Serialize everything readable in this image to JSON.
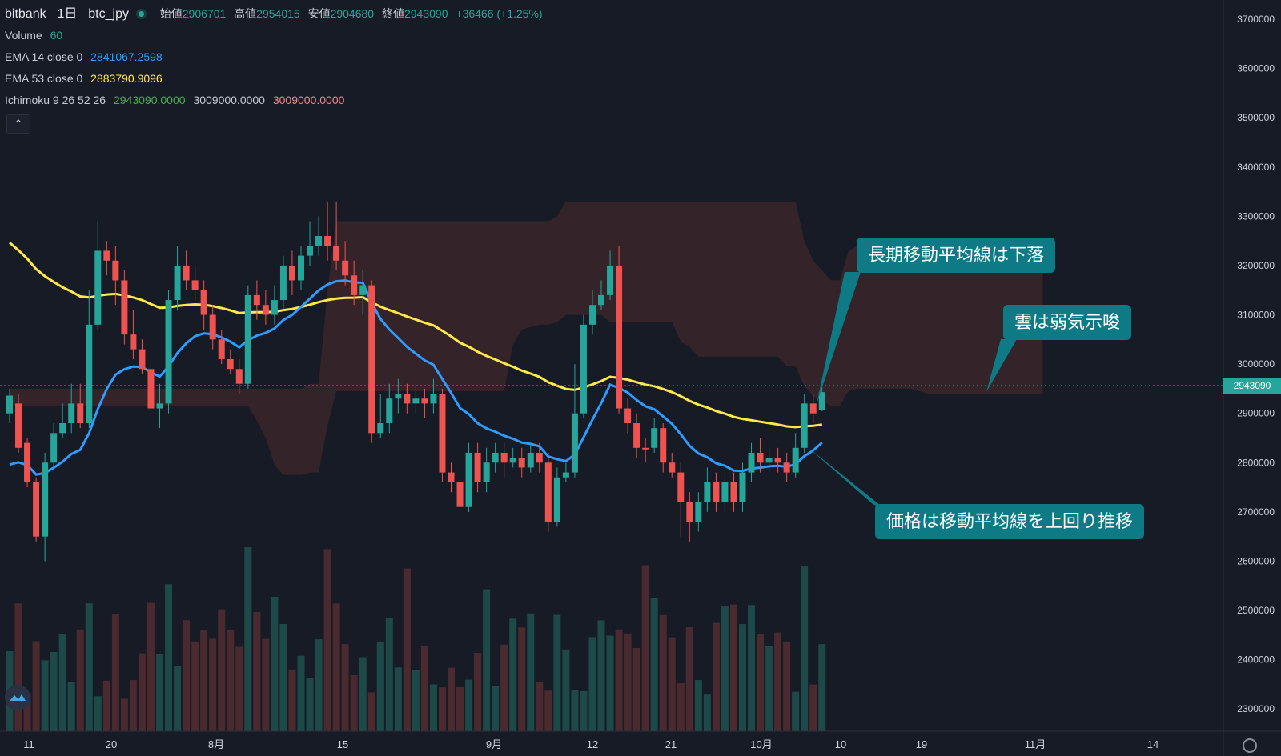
{
  "legend": {
    "exchange": "bitbank",
    "interval": "1日",
    "symbol": "btc_jpy",
    "open_label": "始値",
    "open": "2906701",
    "high_label": "高値",
    "high": "2954015",
    "low_label": "安値",
    "low": "2904680",
    "close_label": "終値",
    "close": "2943090",
    "change": "+36466 (+1.25%)",
    "volume_label": "Volume",
    "volume": "60",
    "ema14_label": "EMA 14 close 0",
    "ema14": "2841067.2598",
    "ema53_label": "EMA 53 close 0",
    "ema53": "2883790.9096",
    "ichimoku_label": "Ichimoku 9 26 52 26",
    "ichimoku_v1": "2943090.0000",
    "ichimoku_v2": "3009000.0000",
    "ichimoku_v3": "3009000.0000",
    "collapse_icon": "chevron-up-icon"
  },
  "price_tag": "2943090",
  "annotations": [
    "長期移動平均線は下落",
    "雲は弱気示唆",
    "価格は移動平均線を上回り推移"
  ],
  "colors": {
    "up": "#26a69a",
    "down": "#ef5350",
    "ema14": "#2e9bff",
    "ema53": "#ffe94a",
    "cloud_bear": "#3a2529",
    "cloud_bull": "#1d2f2b",
    "background": "#161b26"
  },
  "chart_data": {
    "type": "candlestick",
    "y_axis_ticks": [
      2300000,
      2400000,
      2500000,
      2600000,
      2700000,
      2800000,
      2900000,
      3000000,
      3100000,
      3200000,
      3300000,
      3400000,
      3500000,
      3600000,
      3700000
    ],
    "ylim": [
      2200000,
      3740000
    ],
    "x_axis_ticks": [
      "11",
      "20",
      "8月",
      "15",
      "9月",
      "12",
      "21",
      "10月",
      "10",
      "19",
      "11月",
      "14"
    ],
    "candles": [
      [
        2936000,
        2900000,
        2950000,
        2880000,
        "up"
      ],
      [
        2920000,
        2830000,
        2940000,
        2820000,
        "down"
      ],
      [
        2840000,
        2760000,
        2850000,
        2750000,
        "down"
      ],
      [
        2760000,
        2650000,
        2770000,
        2640000,
        "down"
      ],
      [
        2650000,
        2800000,
        2820000,
        2600000,
        "up"
      ],
      [
        2800000,
        2860000,
        2880000,
        2790000,
        "up"
      ],
      [
        2860000,
        2880000,
        2920000,
        2850000,
        "up"
      ],
      [
        2880000,
        2920000,
        2960000,
        2860000,
        "up"
      ],
      [
        2920000,
        2880000,
        2960000,
        2870000,
        "down"
      ],
      [
        2880000,
        3080000,
        3150000,
        2870000,
        "up"
      ],
      [
        3080000,
        3230000,
        3290000,
        3070000,
        "up"
      ],
      [
        3230000,
        3210000,
        3250000,
        3180000,
        "down"
      ],
      [
        3210000,
        3170000,
        3240000,
        3120000,
        "down"
      ],
      [
        3170000,
        3060000,
        3190000,
        3040000,
        "down"
      ],
      [
        3060000,
        3030000,
        3110000,
        3010000,
        "down"
      ],
      [
        3030000,
        2990000,
        3050000,
        2980000,
        "down"
      ],
      [
        2990000,
        2910000,
        3010000,
        2890000,
        "down"
      ],
      [
        2910000,
        2920000,
        2960000,
        2870000,
        "up"
      ],
      [
        2920000,
        3130000,
        3150000,
        2900000,
        "up"
      ],
      [
        3130000,
        3200000,
        3240000,
        3110000,
        "up"
      ],
      [
        3200000,
        3170000,
        3230000,
        3150000,
        "down"
      ],
      [
        3170000,
        3150000,
        3200000,
        3130000,
        "down"
      ],
      [
        3150000,
        3100000,
        3170000,
        3070000,
        "down"
      ],
      [
        3100000,
        3050000,
        3120000,
        3030000,
        "down"
      ],
      [
        3050000,
        3010000,
        3070000,
        3000000,
        "down"
      ],
      [
        3010000,
        2990000,
        3030000,
        2980000,
        "down"
      ],
      [
        2990000,
        2960000,
        3010000,
        2940000,
        "down"
      ],
      [
        2960000,
        3140000,
        3160000,
        2950000,
        "up"
      ],
      [
        3140000,
        3120000,
        3170000,
        3090000,
        "down"
      ],
      [
        3120000,
        3100000,
        3150000,
        3080000,
        "down"
      ],
      [
        3100000,
        3130000,
        3160000,
        3080000,
        "up"
      ],
      [
        3130000,
        3200000,
        3220000,
        3110000,
        "up"
      ],
      [
        3200000,
        3170000,
        3230000,
        3140000,
        "down"
      ],
      [
        3170000,
        3220000,
        3240000,
        3150000,
        "up"
      ],
      [
        3220000,
        3240000,
        3290000,
        3200000,
        "up"
      ],
      [
        3240000,
        3260000,
        3300000,
        3220000,
        "up"
      ],
      [
        3260000,
        3240000,
        3330000,
        3210000,
        "down"
      ],
      [
        3240000,
        3210000,
        3330000,
        3190000,
        "down"
      ],
      [
        3210000,
        3180000,
        3250000,
        3160000,
        "down"
      ],
      [
        3180000,
        3140000,
        3210000,
        3120000,
        "down"
      ],
      [
        3140000,
        3160000,
        3190000,
        3100000,
        "up"
      ],
      [
        3160000,
        2860000,
        3170000,
        2840000,
        "down"
      ],
      [
        2860000,
        2880000,
        2940000,
        2850000,
        "up"
      ],
      [
        2880000,
        2930000,
        2960000,
        2860000,
        "up"
      ],
      [
        2930000,
        2940000,
        2970000,
        2900000,
        "up"
      ],
      [
        2940000,
        2920000,
        2960000,
        2900000,
        "down"
      ],
      [
        2920000,
        2930000,
        2960000,
        2900000,
        "up"
      ],
      [
        2930000,
        2920000,
        2950000,
        2890000,
        "down"
      ],
      [
        2920000,
        2940000,
        2970000,
        2900000,
        "up"
      ],
      [
        2940000,
        2780000,
        2950000,
        2760000,
        "down"
      ],
      [
        2780000,
        2760000,
        2800000,
        2740000,
        "down"
      ],
      [
        2760000,
        2710000,
        2790000,
        2700000,
        "down"
      ],
      [
        2710000,
        2820000,
        2840000,
        2700000,
        "up"
      ],
      [
        2820000,
        2760000,
        2840000,
        2740000,
        "down"
      ],
      [
        2760000,
        2800000,
        2830000,
        2740000,
        "up"
      ],
      [
        2800000,
        2820000,
        2840000,
        2780000,
        "up"
      ],
      [
        2820000,
        2800000,
        2840000,
        2770000,
        "down"
      ],
      [
        2800000,
        2810000,
        2830000,
        2790000,
        "up"
      ],
      [
        2810000,
        2790000,
        2830000,
        2770000,
        "down"
      ],
      [
        2790000,
        2820000,
        2840000,
        2780000,
        "up"
      ],
      [
        2820000,
        2800000,
        2840000,
        2780000,
        "down"
      ],
      [
        2800000,
        2680000,
        2820000,
        2660000,
        "down"
      ],
      [
        2680000,
        2770000,
        2790000,
        2670000,
        "up"
      ],
      [
        2770000,
        2780000,
        2800000,
        2760000,
        "up"
      ],
      [
        2780000,
        2900000,
        3000000,
        2770000,
        "up"
      ],
      [
        2900000,
        3080000,
        3100000,
        2890000,
        "up"
      ],
      [
        3080000,
        3120000,
        3150000,
        3060000,
        "up"
      ],
      [
        3120000,
        3140000,
        3170000,
        3110000,
        "up"
      ],
      [
        3140000,
        3200000,
        3230000,
        3130000,
        "up"
      ],
      [
        3200000,
        2910000,
        3240000,
        2900000,
        "down"
      ],
      [
        2910000,
        2880000,
        2930000,
        2860000,
        "down"
      ],
      [
        2880000,
        2830000,
        2900000,
        2810000,
        "down"
      ],
      [
        2830000,
        2830000,
        2850000,
        2800000,
        "down"
      ],
      [
        2830000,
        2870000,
        2890000,
        2820000,
        "up"
      ],
      [
        2870000,
        2800000,
        2880000,
        2780000,
        "down"
      ],
      [
        2800000,
        2780000,
        2820000,
        2770000,
        "down"
      ],
      [
        2780000,
        2720000,
        2800000,
        2650000,
        "down"
      ],
      [
        2720000,
        2680000,
        2740000,
        2640000,
        "down"
      ],
      [
        2680000,
        2720000,
        2740000,
        2660000,
        "up"
      ],
      [
        2720000,
        2760000,
        2790000,
        2700000,
        "up"
      ],
      [
        2760000,
        2720000,
        2780000,
        2700000,
        "down"
      ],
      [
        2720000,
        2760000,
        2780000,
        2700000,
        "up"
      ],
      [
        2760000,
        2720000,
        2780000,
        2700000,
        "down"
      ],
      [
        2720000,
        2780000,
        2800000,
        2700000,
        "up"
      ],
      [
        2780000,
        2820000,
        2840000,
        2760000,
        "up"
      ],
      [
        2820000,
        2800000,
        2850000,
        2780000,
        "down"
      ],
      [
        2800000,
        2810000,
        2830000,
        2780000,
        "up"
      ],
      [
        2810000,
        2800000,
        2830000,
        2780000,
        "down"
      ],
      [
        2800000,
        2780000,
        2820000,
        2760000,
        "down"
      ],
      [
        2780000,
        2830000,
        2860000,
        2770000,
        "up"
      ],
      [
        2830000,
        2920000,
        2940000,
        2820000,
        "up"
      ],
      [
        2920000,
        2900000,
        2940000,
        2880000,
        "down"
      ],
      [
        2906701,
        2943090,
        2954015,
        2904680,
        "up"
      ]
    ],
    "volume_series_max": 2640000
  }
}
